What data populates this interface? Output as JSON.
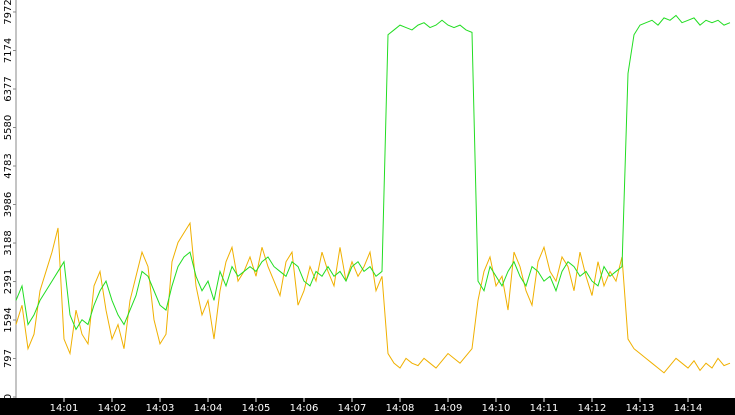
{
  "chart_data": {
    "type": "line",
    "categories": [
      null,
      null,
      null,
      null,
      null,
      null,
      null,
      null,
      "14:01",
      null,
      null,
      null,
      null,
      null,
      null,
      null,
      "14:02",
      null,
      null,
      null,
      null,
      null,
      null,
      null,
      "14:03",
      null,
      null,
      null,
      null,
      null,
      null,
      null,
      "14:04",
      null,
      null,
      null,
      null,
      null,
      null,
      null,
      "14:05",
      null,
      null,
      null,
      null,
      null,
      null,
      null,
      "14:06",
      null,
      null,
      null,
      null,
      null,
      null,
      null,
      "14:07",
      null,
      null,
      null,
      null,
      null,
      null,
      null,
      "14:08",
      null,
      null,
      null,
      null,
      null,
      null,
      null,
      "14:09",
      null,
      null,
      null,
      null,
      null,
      null,
      null,
      "14:10",
      null,
      null,
      null,
      null,
      null,
      null,
      null,
      "14:11",
      null,
      null,
      null,
      null,
      null,
      null,
      null,
      "14:12",
      null,
      null,
      null,
      null,
      null,
      null,
      null,
      "14:13",
      null,
      null,
      null,
      null,
      null,
      null,
      null,
      "14:14",
      null,
      null,
      null,
      null,
      null,
      null,
      null
    ],
    "series": [
      {
        "color": "#22dd22",
        "values": [
          2000,
          2300,
          1500,
          1700,
          2000,
          2200,
          2400,
          2600,
          2800,
          1700,
          1400,
          1600,
          1500,
          1900,
          2200,
          2400,
          2000,
          1700,
          1500,
          1800,
          2100,
          2600,
          2500,
          2200,
          1900,
          1800,
          2300,
          2700,
          2900,
          3000,
          2500,
          2200,
          2400,
          2000,
          2600,
          2300,
          2700,
          2500,
          2600,
          2700,
          2600,
          2800,
          2900,
          2700,
          2600,
          2500,
          2800,
          2700,
          2400,
          2300,
          2600,
          2500,
          2700,
          2500,
          2600,
          2400,
          2700,
          2800,
          2600,
          2700,
          2500,
          2600,
          7500,
          7600,
          7700,
          7650,
          7600,
          7700,
          7750,
          7650,
          7700,
          7800,
          7700,
          7650,
          7700,
          7600,
          7550,
          2400,
          2200,
          2700,
          2500,
          2300,
          2600,
          2800,
          2500,
          2300,
          2700,
          2600,
          2400,
          2500,
          2200,
          2600,
          2800,
          2700,
          2500,
          2600,
          2400,
          2300,
          2700,
          2500,
          2600,
          2700,
          6700,
          7500,
          7700,
          7750,
          7800,
          7700,
          7850,
          7800,
          7900,
          7750,
          7800,
          7850,
          7700,
          7800,
          7750,
          7800,
          7700,
          7750
        ]
      },
      {
        "color": "#f0b000",
        "values": [
          1500,
          1900,
          1000,
          1300,
          2200,
          2600,
          3000,
          3500,
          1200,
          900,
          1800,
          1300,
          1100,
          2300,
          2600,
          1800,
          1200,
          1500,
          1000,
          2000,
          2500,
          3000,
          2700,
          1600,
          1100,
          1300,
          2800,
          3200,
          3400,
          3600,
          2300,
          1700,
          2000,
          1200,
          2200,
          2800,
          3100,
          2400,
          2600,
          2900,
          2500,
          3100,
          2700,
          2400,
          2100,
          2800,
          3000,
          1900,
          2200,
          2700,
          2400,
          3000,
          2600,
          2300,
          3100,
          2400,
          2800,
          2500,
          2700,
          3000,
          2200,
          2500,
          900,
          700,
          600,
          800,
          700,
          650,
          800,
          700,
          600,
          750,
          900,
          800,
          700,
          850,
          1000,
          2000,
          2600,
          2900,
          2300,
          2500,
          1800,
          3000,
          2700,
          2200,
          1900,
          2800,
          3100,
          2600,
          2400,
          2900,
          2700,
          2200,
          3000,
          2500,
          2100,
          2800,
          2300,
          2600,
          2400,
          2900,
          1200,
          1000,
          900,
          800,
          700,
          600,
          500,
          650,
          800,
          700,
          600,
          750,
          550,
          700,
          600,
          800,
          650,
          700
        ]
      }
    ],
    "ylim": [
      0,
      8220
    ],
    "yticks": [
      0,
      797,
      1594,
      2391,
      3188,
      3986,
      4783,
      5580,
      6377,
      7174,
      7972
    ],
    "grid": false
  }
}
